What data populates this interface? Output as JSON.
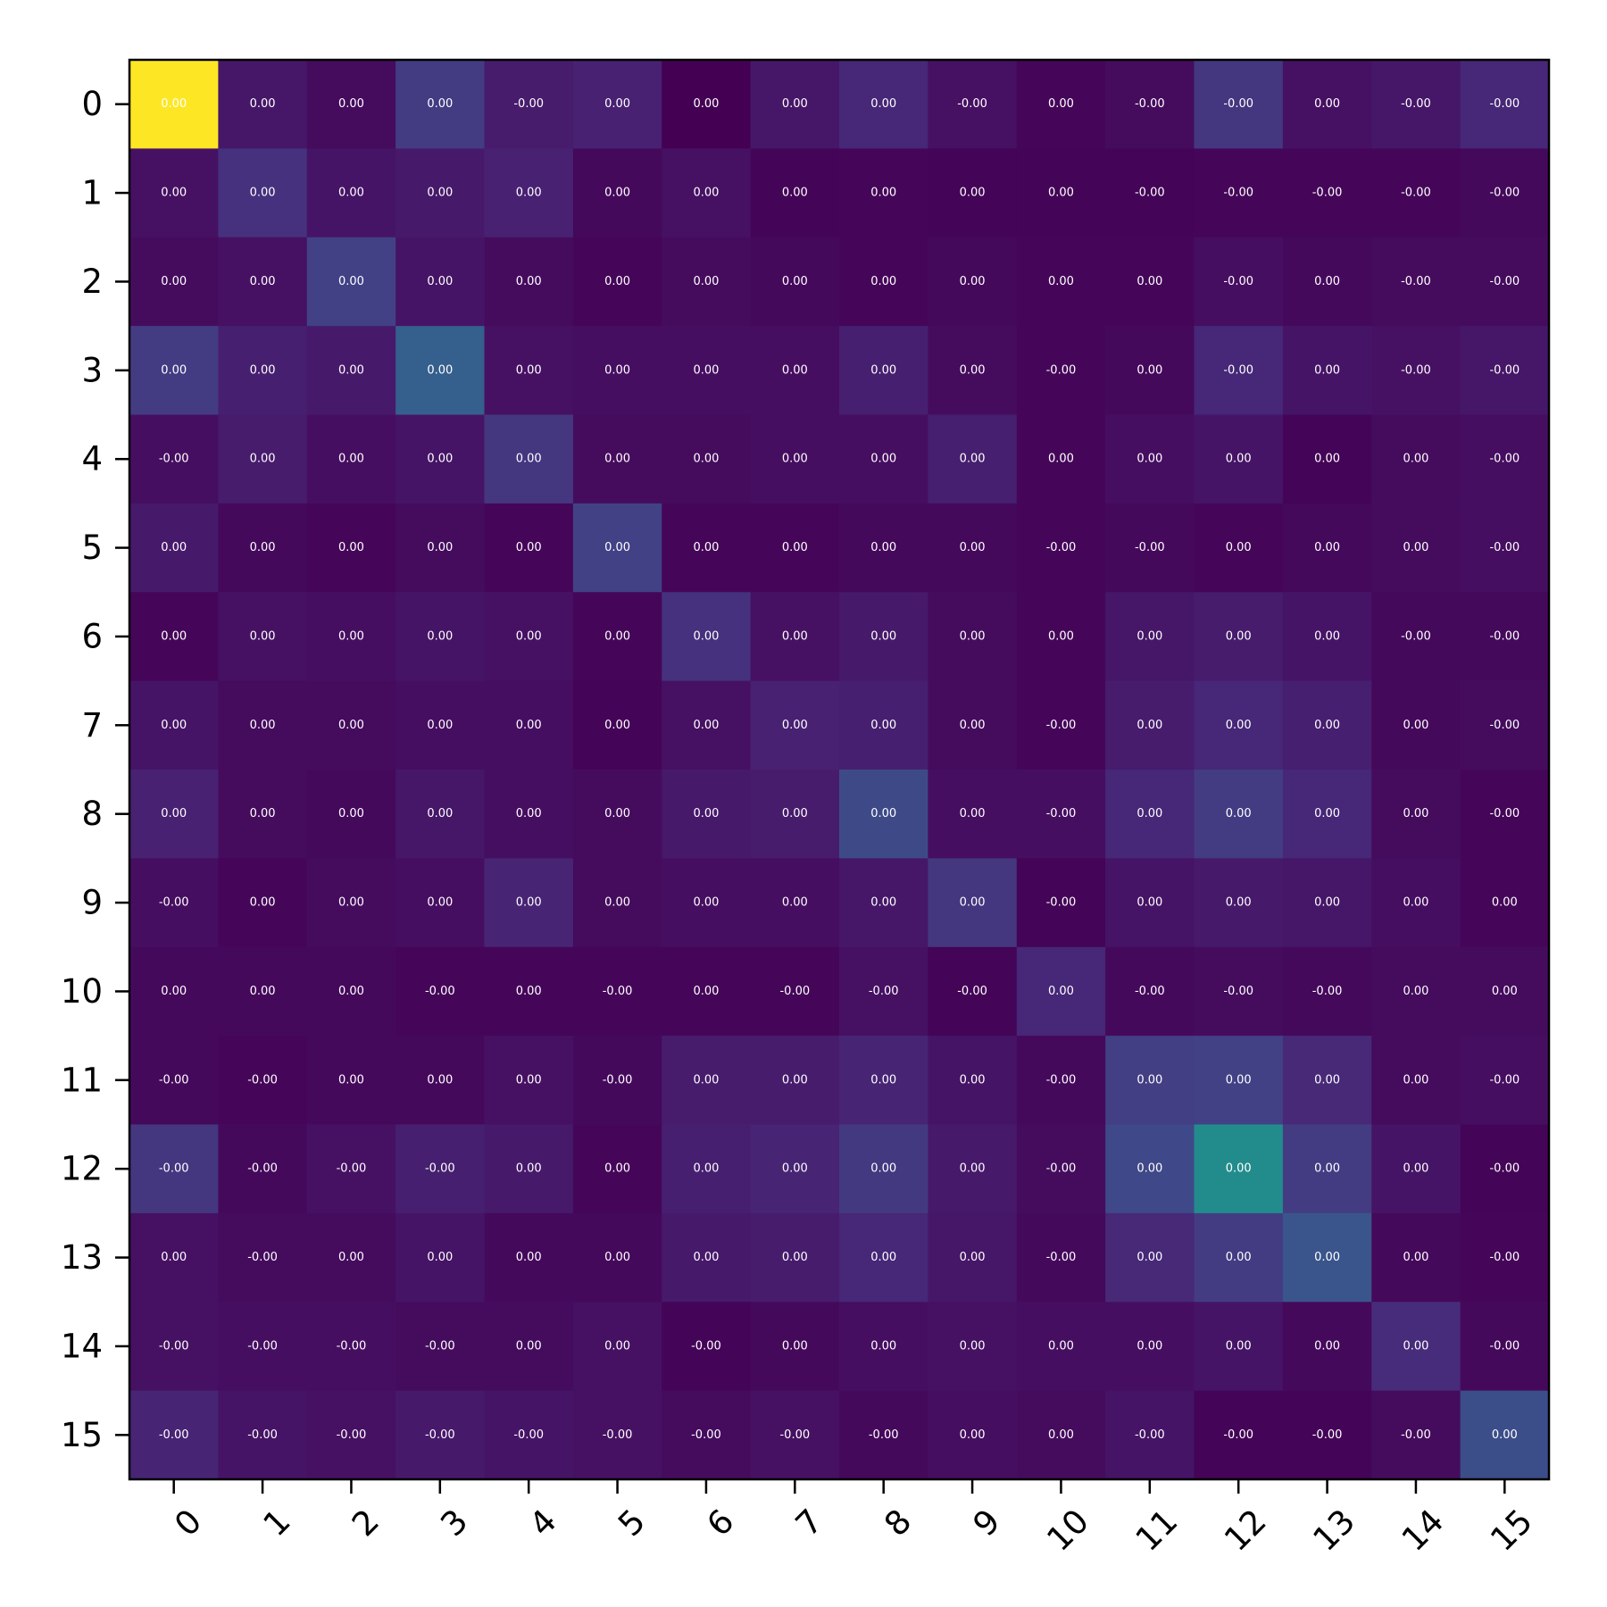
{
  "chart_data": {
    "type": "heatmap",
    "title": "",
    "xlabel": "",
    "ylabel": "",
    "colormap": "viridis",
    "value_range": [
      0,
      1
    ],
    "grid": false,
    "colorbar": false,
    "x_tick_labels": [
      "0",
      "1",
      "2",
      "3",
      "4",
      "5",
      "6",
      "7",
      "8",
      "9",
      "10",
      "11",
      "12",
      "13",
      "14",
      "15"
    ],
    "y_tick_labels": [
      "0",
      "1",
      "2",
      "3",
      "4",
      "5",
      "6",
      "7",
      "8",
      "9",
      "10",
      "11",
      "12",
      "13",
      "14",
      "15"
    ],
    "x_tick_rotation_deg": 45,
    "intensity": [
      [
        1.0,
        0.08,
        0.04,
        0.22,
        0.1,
        0.12,
        0.0,
        0.08,
        0.14,
        0.06,
        0.02,
        0.04,
        0.2,
        0.06,
        0.08,
        0.14
      ],
      [
        0.06,
        0.18,
        0.07,
        0.09,
        0.12,
        0.03,
        0.06,
        0.01,
        0.02,
        0.01,
        0.01,
        0.01,
        0.02,
        0.02,
        0.02,
        0.03
      ],
      [
        0.04,
        0.06,
        0.24,
        0.07,
        0.04,
        0.02,
        0.04,
        0.03,
        0.02,
        0.03,
        0.02,
        0.02,
        0.05,
        0.03,
        0.04,
        0.04
      ],
      [
        0.22,
        0.11,
        0.09,
        0.38,
        0.06,
        0.05,
        0.05,
        0.05,
        0.11,
        0.04,
        0.02,
        0.03,
        0.14,
        0.07,
        0.06,
        0.08
      ],
      [
        0.05,
        0.1,
        0.05,
        0.07,
        0.2,
        0.04,
        0.04,
        0.05,
        0.05,
        0.11,
        0.02,
        0.05,
        0.07,
        0.01,
        0.04,
        0.05
      ],
      [
        0.09,
        0.03,
        0.02,
        0.04,
        0.02,
        0.24,
        0.02,
        0.02,
        0.03,
        0.03,
        0.02,
        0.03,
        0.02,
        0.03,
        0.04,
        0.05
      ],
      [
        0.02,
        0.06,
        0.05,
        0.07,
        0.06,
        0.02,
        0.18,
        0.06,
        0.09,
        0.04,
        0.02,
        0.08,
        0.1,
        0.07,
        0.03,
        0.03
      ],
      [
        0.07,
        0.04,
        0.04,
        0.05,
        0.05,
        0.01,
        0.06,
        0.12,
        0.11,
        0.04,
        0.02,
        0.1,
        0.14,
        0.11,
        0.03,
        0.04
      ],
      [
        0.12,
        0.04,
        0.03,
        0.08,
        0.05,
        0.04,
        0.09,
        0.1,
        0.28,
        0.05,
        0.05,
        0.14,
        0.22,
        0.14,
        0.04,
        0.02
      ],
      [
        0.05,
        0.02,
        0.04,
        0.05,
        0.13,
        0.04,
        0.05,
        0.05,
        0.08,
        0.2,
        0.01,
        0.07,
        0.09,
        0.08,
        0.05,
        0.02
      ],
      [
        0.03,
        0.03,
        0.03,
        0.02,
        0.02,
        0.02,
        0.02,
        0.02,
        0.06,
        0.01,
        0.14,
        0.03,
        0.04,
        0.03,
        0.04,
        0.04
      ],
      [
        0.03,
        0.02,
        0.03,
        0.03,
        0.06,
        0.03,
        0.1,
        0.1,
        0.13,
        0.07,
        0.03,
        0.23,
        0.24,
        0.15,
        0.04,
        0.05
      ],
      [
        0.2,
        0.03,
        0.06,
        0.11,
        0.09,
        0.02,
        0.11,
        0.13,
        0.21,
        0.09,
        0.04,
        0.27,
        0.6,
        0.22,
        0.07,
        0.01
      ],
      [
        0.06,
        0.04,
        0.04,
        0.07,
        0.03,
        0.03,
        0.09,
        0.1,
        0.14,
        0.08,
        0.03,
        0.15,
        0.22,
        0.33,
        0.03,
        0.02
      ],
      [
        0.06,
        0.05,
        0.05,
        0.04,
        0.04,
        0.06,
        0.01,
        0.03,
        0.05,
        0.06,
        0.05,
        0.05,
        0.07,
        0.03,
        0.16,
        0.03
      ],
      [
        0.13,
        0.07,
        0.06,
        0.09,
        0.07,
        0.06,
        0.04,
        0.06,
        0.03,
        0.05,
        0.04,
        0.07,
        0.01,
        0.01,
        0.04,
        0.3
      ]
    ],
    "value_labels": [
      [
        "0.00",
        "0.00",
        "0.00",
        "0.00",
        "-0.00",
        "0.00",
        "0.00",
        "0.00",
        "0.00",
        "-0.00",
        "0.00",
        "-0.00",
        "-0.00",
        "0.00",
        "-0.00",
        "-0.00"
      ],
      [
        "0.00",
        "0.00",
        "0.00",
        "0.00",
        "0.00",
        "0.00",
        "0.00",
        "0.00",
        "0.00",
        "0.00",
        "0.00",
        "-0.00",
        "-0.00",
        "-0.00",
        "-0.00",
        "-0.00"
      ],
      [
        "0.00",
        "0.00",
        "0.00",
        "0.00",
        "0.00",
        "0.00",
        "0.00",
        "0.00",
        "0.00",
        "0.00",
        "0.00",
        "0.00",
        "-0.00",
        "0.00",
        "-0.00",
        "-0.00"
      ],
      [
        "0.00",
        "0.00",
        "0.00",
        "0.00",
        "0.00",
        "0.00",
        "0.00",
        "0.00",
        "0.00",
        "0.00",
        "-0.00",
        "0.00",
        "-0.00",
        "0.00",
        "-0.00",
        "-0.00"
      ],
      [
        "-0.00",
        "0.00",
        "0.00",
        "0.00",
        "0.00",
        "0.00",
        "0.00",
        "0.00",
        "0.00",
        "0.00",
        "0.00",
        "0.00",
        "0.00",
        "0.00",
        "0.00",
        "-0.00"
      ],
      [
        "0.00",
        "0.00",
        "0.00",
        "0.00",
        "0.00",
        "0.00",
        "0.00",
        "0.00",
        "0.00",
        "0.00",
        "-0.00",
        "-0.00",
        "0.00",
        "0.00",
        "0.00",
        "-0.00"
      ],
      [
        "0.00",
        "0.00",
        "0.00",
        "0.00",
        "0.00",
        "0.00",
        "0.00",
        "0.00",
        "0.00",
        "0.00",
        "0.00",
        "0.00",
        "0.00",
        "0.00",
        "-0.00",
        "-0.00"
      ],
      [
        "0.00",
        "0.00",
        "0.00",
        "0.00",
        "0.00",
        "0.00",
        "0.00",
        "0.00",
        "0.00",
        "0.00",
        "-0.00",
        "0.00",
        "0.00",
        "0.00",
        "0.00",
        "-0.00"
      ],
      [
        "0.00",
        "0.00",
        "0.00",
        "0.00",
        "0.00",
        "0.00",
        "0.00",
        "0.00",
        "0.00",
        "0.00",
        "-0.00",
        "0.00",
        "0.00",
        "0.00",
        "0.00",
        "-0.00"
      ],
      [
        "-0.00",
        "0.00",
        "0.00",
        "0.00",
        "0.00",
        "0.00",
        "0.00",
        "0.00",
        "0.00",
        "0.00",
        "-0.00",
        "0.00",
        "0.00",
        "0.00",
        "0.00",
        "0.00"
      ],
      [
        "0.00",
        "0.00",
        "0.00",
        "-0.00",
        "0.00",
        "-0.00",
        "0.00",
        "-0.00",
        "-0.00",
        "-0.00",
        "0.00",
        "-0.00",
        "-0.00",
        "-0.00",
        "0.00",
        "0.00"
      ],
      [
        "-0.00",
        "-0.00",
        "0.00",
        "0.00",
        "0.00",
        "-0.00",
        "0.00",
        "0.00",
        "0.00",
        "0.00",
        "-0.00",
        "0.00",
        "0.00",
        "0.00",
        "0.00",
        "-0.00"
      ],
      [
        "-0.00",
        "-0.00",
        "-0.00",
        "-0.00",
        "0.00",
        "0.00",
        "0.00",
        "0.00",
        "0.00",
        "0.00",
        "-0.00",
        "0.00",
        "0.00",
        "0.00",
        "0.00",
        "-0.00"
      ],
      [
        "0.00",
        "-0.00",
        "0.00",
        "0.00",
        "0.00",
        "0.00",
        "0.00",
        "0.00",
        "0.00",
        "0.00",
        "-0.00",
        "0.00",
        "0.00",
        "0.00",
        "0.00",
        "-0.00"
      ],
      [
        "-0.00",
        "-0.00",
        "-0.00",
        "-0.00",
        "0.00",
        "0.00",
        "-0.00",
        "0.00",
        "0.00",
        "0.00",
        "0.00",
        "0.00",
        "0.00",
        "0.00",
        "0.00",
        "-0.00"
      ],
      [
        "-0.00",
        "-0.00",
        "-0.00",
        "-0.00",
        "-0.00",
        "-0.00",
        "-0.00",
        "-0.00",
        "-0.00",
        "0.00",
        "0.00",
        "-0.00",
        "-0.00",
        "-0.00",
        "-0.00",
        "0.00"
      ]
    ]
  }
}
